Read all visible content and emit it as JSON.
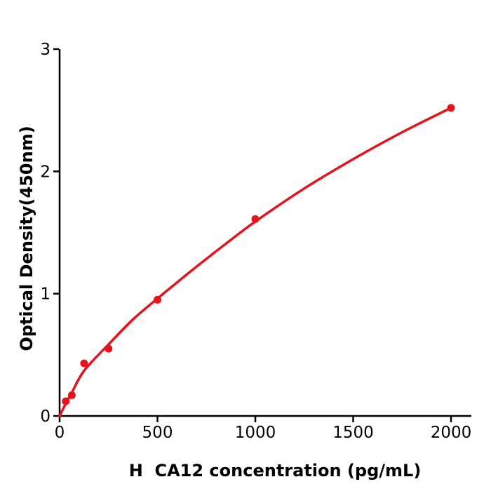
{
  "figure": {
    "background_color": "#ffffff",
    "axis_color": "#000000",
    "accent_color": "#e8121c"
  },
  "chart_data": {
    "type": "scatter",
    "title": "",
    "xlabel": "H  CA12 concentration (pg/mL)",
    "ylabel": "Optical Density(450nm)",
    "xlim": [
      0,
      2100
    ],
    "ylim": [
      0,
      3
    ],
    "x_ticks": [
      0,
      500,
      1000,
      1500,
      2000
    ],
    "y_ticks": [
      0,
      1,
      2,
      3
    ],
    "grid": false,
    "legend": "none",
    "series": [
      {
        "name": "fitted standard curve",
        "type": "line",
        "color": "#e8121c",
        "points": [
          [
            0,
            0
          ],
          [
            31,
            0.1
          ],
          [
            62,
            0.19
          ],
          [
            125,
            0.37
          ],
          [
            250,
            0.585
          ],
          [
            375,
            0.79
          ],
          [
            500,
            0.96
          ],
          [
            625,
            1.125
          ],
          [
            750,
            1.285
          ],
          [
            875,
            1.44
          ],
          [
            1000,
            1.59
          ],
          [
            1250,
            1.86
          ],
          [
            1500,
            2.1
          ],
          [
            1750,
            2.32
          ],
          [
            2000,
            2.52
          ]
        ]
      },
      {
        "name": "standard data points",
        "type": "scatter",
        "color": "#e8121c",
        "points": [
          [
            31.25,
            0.12
          ],
          [
            62.5,
            0.17
          ],
          [
            125,
            0.43
          ],
          [
            250,
            0.55
          ],
          [
            500,
            0.95
          ],
          [
            1000,
            1.61
          ],
          [
            2000,
            2.52
          ]
        ]
      }
    ]
  }
}
